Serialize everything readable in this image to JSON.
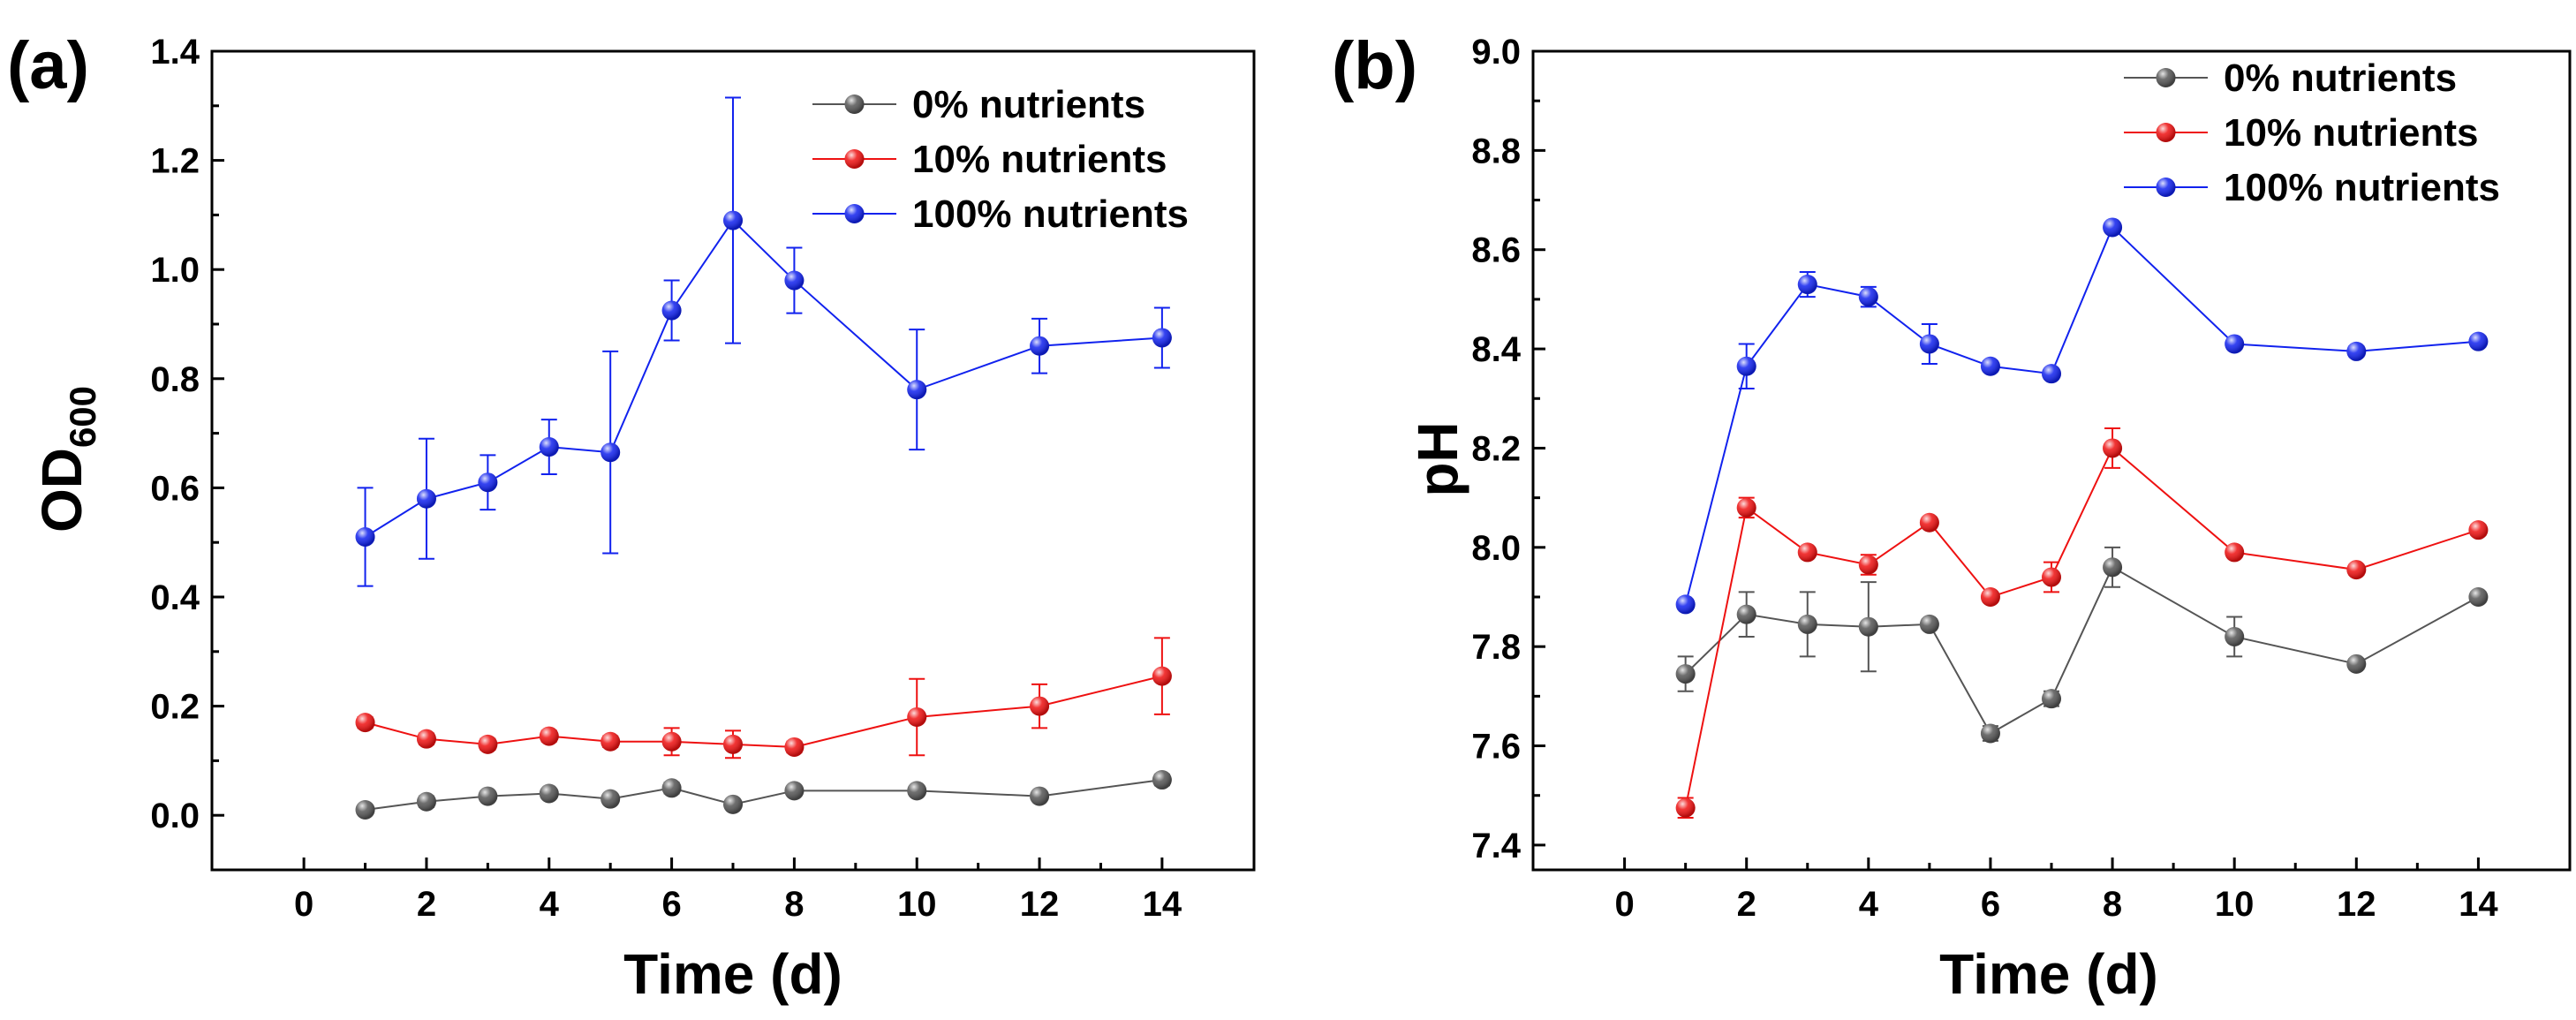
{
  "chart_data": [
    {
      "panel_label": "(a)",
      "type": "line",
      "xlabel": "Time (d)",
      "ylabel_main": "OD",
      "ylabel_sub": "600",
      "xlim": [
        -1.5,
        15.5
      ],
      "ylim": [
        -0.1,
        1.4
      ],
      "xticks": [
        0,
        2,
        4,
        6,
        8,
        10,
        12,
        14
      ],
      "xtick_labels": [
        "0",
        "2",
        "4",
        "6",
        "8",
        "10",
        "12",
        "14"
      ],
      "yticks": [
        0.0,
        0.2,
        0.4,
        0.6,
        0.8,
        1.0,
        1.2,
        1.4
      ],
      "ytick_labels": [
        "0.0",
        "0.2",
        "0.4",
        "0.6",
        "0.8",
        "1.0",
        "1.2",
        "1.4"
      ],
      "legend_position": "top-right",
      "series": [
        {
          "name": "0% nutrients",
          "color": "#555555",
          "x": [
            1,
            2,
            3,
            4,
            5,
            6,
            7,
            8,
            10,
            12,
            14
          ],
          "values": [
            0.01,
            0.025,
            0.035,
            0.04,
            0.03,
            0.05,
            0.02,
            0.045,
            0.045,
            0.035,
            0.065
          ],
          "errors": [
            0.008,
            0.01,
            0.008,
            0.008,
            0.008,
            0.01,
            0.008,
            0.008,
            0.008,
            0.008,
            0.01
          ]
        },
        {
          "name": "10% nutrients",
          "color": "#ee1111",
          "x": [
            1,
            2,
            3,
            4,
            5,
            6,
            7,
            8,
            10,
            12,
            14
          ],
          "values": [
            0.17,
            0.14,
            0.13,
            0.145,
            0.135,
            0.135,
            0.13,
            0.125,
            0.18,
            0.2,
            0.255
          ],
          "errors": [
            0.01,
            0.01,
            0.01,
            0.01,
            0.01,
            0.025,
            0.025,
            0.01,
            0.07,
            0.04,
            0.07
          ]
        },
        {
          "name": "100% nutrients",
          "color": "#1122ee",
          "x": [
            1,
            2,
            3,
            4,
            5,
            6,
            7,
            8,
            10,
            12,
            14
          ],
          "values": [
            0.51,
            0.58,
            0.61,
            0.675,
            0.665,
            0.925,
            1.09,
            0.98,
            0.78,
            0.86,
            0.875
          ],
          "errors": [
            0.09,
            0.11,
            0.05,
            0.05,
            0.185,
            0.055,
            0.225,
            0.06,
            0.11,
            0.05,
            0.055
          ]
        }
      ]
    },
    {
      "panel_label": "(b)",
      "type": "line",
      "xlabel": "Time (d)",
      "ylabel_main": "pH",
      "ylabel_sub": "",
      "xlim": [
        -1.5,
        15.5
      ],
      "ylim": [
        7.35,
        9.0
      ],
      "xticks": [
        0,
        2,
        4,
        6,
        8,
        10,
        12,
        14
      ],
      "xtick_labels": [
        "0",
        "2",
        "4",
        "6",
        "8",
        "10",
        "12",
        "14"
      ],
      "yticks": [
        7.4,
        7.6,
        7.8,
        8.0,
        8.2,
        8.4,
        8.6,
        8.8,
        9.0
      ],
      "ytick_labels": [
        "7.4",
        "7.6",
        "7.8",
        "8.0",
        "8.2",
        "8.4",
        "8.6",
        "8.8",
        "9.0"
      ],
      "legend_position": "top-right",
      "series": [
        {
          "name": "0% nutrients",
          "color": "#555555",
          "x": [
            1,
            2,
            3,
            4,
            5,
            6,
            7,
            8,
            10,
            12,
            14
          ],
          "values": [
            7.745,
            7.865,
            7.845,
            7.84,
            7.845,
            7.625,
            7.695,
            7.96,
            7.82,
            7.765,
            7.9
          ],
          "errors": [
            0.035,
            0.045,
            0.065,
            0.09,
            0.01,
            0.015,
            0.015,
            0.04,
            0.04,
            0.01,
            0.01
          ]
        },
        {
          "name": "10% nutrients",
          "color": "#ee1111",
          "x": [
            1,
            2,
            3,
            4,
            5,
            6,
            7,
            8,
            10,
            12,
            14
          ],
          "values": [
            7.475,
            8.08,
            7.99,
            7.965,
            8.05,
            7.9,
            7.94,
            8.2,
            7.99,
            7.955,
            8.035
          ],
          "errors": [
            0.02,
            0.02,
            0.01,
            0.02,
            0.01,
            0.01,
            0.03,
            0.04,
            0.01,
            0.01,
            0.01
          ]
        },
        {
          "name": "100% nutrients",
          "color": "#1122ee",
          "x": [
            1,
            2,
            3,
            4,
            5,
            6,
            7,
            8,
            10,
            12,
            14
          ],
          "values": [
            7.885,
            8.365,
            8.53,
            8.505,
            8.41,
            8.365,
            8.35,
            8.645,
            8.41,
            8.395,
            8.415
          ],
          "errors": [
            0.01,
            0.045,
            0.025,
            0.02,
            0.04,
            0.01,
            0.01,
            0.01,
            0.01,
            0.01,
            0.01
          ]
        }
      ]
    }
  ]
}
